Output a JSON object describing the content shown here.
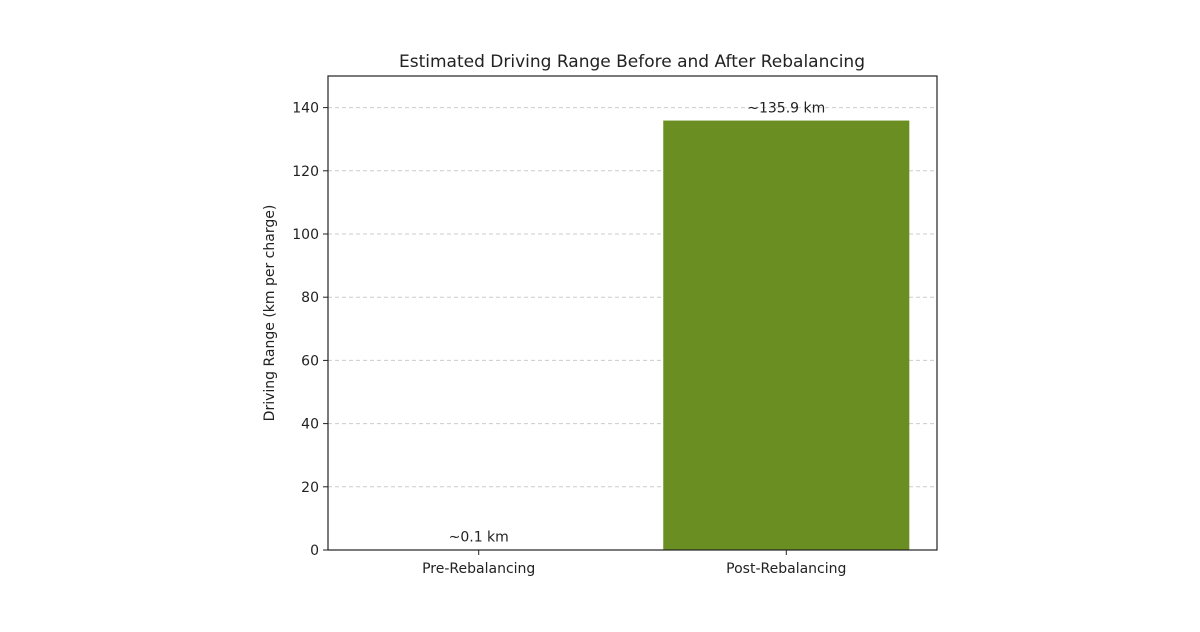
{
  "chart_data": {
    "type": "bar",
    "title": "Estimated Driving Range Before and After Rebalancing",
    "xlabel": "",
    "ylabel": "Driving Range (km per charge)",
    "categories": [
      "Pre-Rebalancing",
      "Post-Rebalancing"
    ],
    "values": [
      0.1,
      135.9
    ],
    "data_labels": [
      "~0.1 km",
      "~135.9 km"
    ],
    "ylim": [
      0,
      150
    ],
    "yticks": [
      0,
      20,
      40,
      60,
      80,
      100,
      120,
      140
    ],
    "grid": "y-dashed",
    "bar_color": "#6b8e23"
  }
}
